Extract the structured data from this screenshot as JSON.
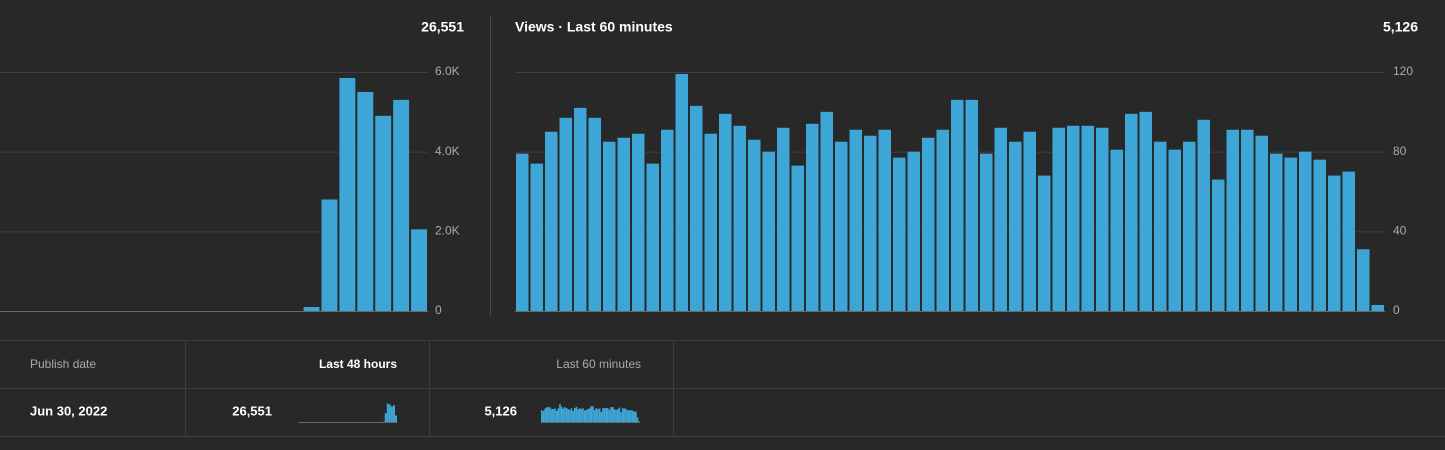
{
  "chart_data": [
    {
      "type": "bar",
      "total": "26,551",
      "color": "#3ea6d7",
      "values": [
        0,
        0,
        0,
        0,
        0,
        0,
        0,
        0,
        0,
        0,
        0,
        0,
        0,
        0,
        0,
        0,
        0,
        100,
        2800,
        5850,
        5500,
        4900,
        5300,
        2050
      ],
      "ylim": [
        0,
        6000
      ],
      "yticks": [
        0,
        {
          "value": 2000,
          "label": "2.0K"
        },
        {
          "value": 4000,
          "label": "4.0K"
        },
        {
          "value": 6000,
          "label": "6.0K"
        }
      ],
      "grid": true
    },
    {
      "type": "bar",
      "title": "Views · Last 60 minutes",
      "total": "5,126",
      "color": "#3ea6d7",
      "values": [
        79,
        74,
        90,
        97,
        102,
        97,
        85,
        87,
        89,
        74,
        91,
        119,
        103,
        89,
        99,
        93,
        86,
        80,
        92,
        73,
        94,
        100,
        85,
        91,
        88,
        91,
        77,
        80,
        87,
        91,
        106,
        106,
        79,
        92,
        85,
        90,
        68,
        92,
        93,
        93,
        92,
        81,
        99,
        100,
        85,
        81,
        85,
        96,
        66,
        91,
        91,
        88,
        79,
        77,
        80,
        76,
        68,
        70,
        31,
        3
      ],
      "ylim": [
        0,
        120
      ],
      "yticks": [
        0,
        40,
        80,
        120
      ],
      "grid": true
    }
  ],
  "table": {
    "headers": [
      "Publish date",
      "Last 48 hours",
      "Last 60 minutes"
    ],
    "rows": [
      [
        "Jun 30, 2022",
        "26,551",
        "5,126"
      ]
    ]
  }
}
